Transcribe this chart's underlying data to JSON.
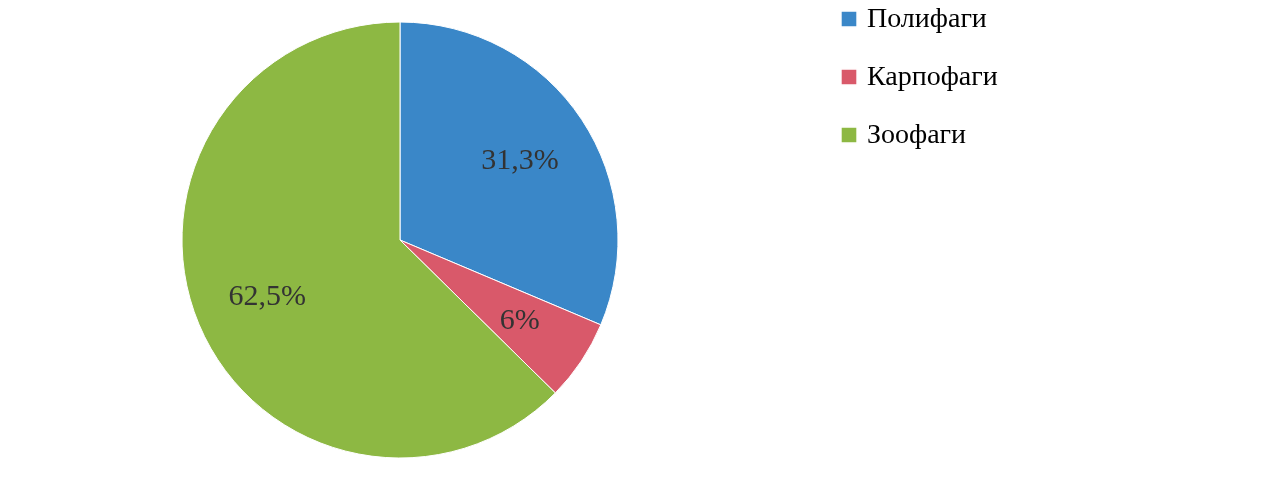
{
  "chart_data": {
    "type": "pie",
    "categories": [
      "Полифаги",
      "Карпофаги",
      "Зоофаги"
    ],
    "values": [
      31.3,
      6,
      62.5
    ],
    "colors": [
      "#3a87c8",
      "#d9596a",
      "#8db843"
    ],
    "value_labels": [
      "31,3%",
      "6%",
      "62,5%"
    ],
    "legend": "right"
  }
}
